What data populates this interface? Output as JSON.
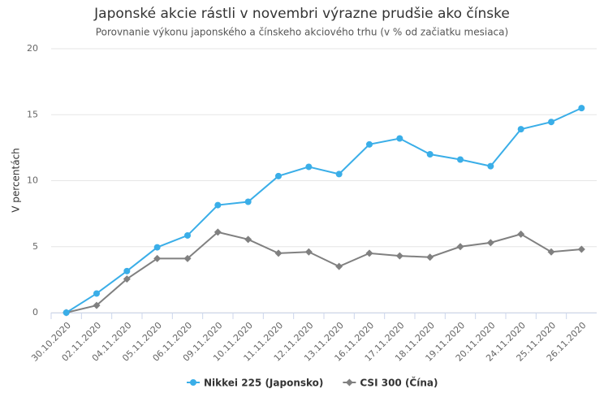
{
  "chart_data": {
    "type": "line",
    "title": "Japonské akcie rástli v novembri výrazne prudšie ako čínske",
    "subtitle": "Porovnanie výkonu japonského a čínskeho akciového trhu (v % od začiatku mesiaca)",
    "y_axis_label": "V percentách",
    "categories": [
      "30.10.2020",
      "02.11.2020",
      "04.11.2020",
      "05.11.2020",
      "06.11.2020",
      "09.11.2020",
      "10.11.2020",
      "11.11.2020",
      "12.11.2020",
      "13.11.2020",
      "16.11.2020",
      "17.11.2020",
      "18.11.2020",
      "19.11.2020",
      "20.11.2020",
      "24.11.2020",
      "25.11.2020",
      "26.11.2020"
    ],
    "series": [
      {
        "name": "Nikkei 225 (Japonsko)",
        "color": "#3aaee8",
        "marker": "circle",
        "values": [
          0,
          1.45,
          3.15,
          4.95,
          5.85,
          8.15,
          8.4,
          10.35,
          11.05,
          10.5,
          12.75,
          13.2,
          12.0,
          11.6,
          11.1,
          13.9,
          14.45,
          15.5
        ]
      },
      {
        "name": "CSI 300 (Čína)",
        "color": "#808080",
        "marker": "diamond",
        "values": [
          0,
          0.55,
          2.55,
          4.1,
          4.1,
          6.1,
          5.55,
          4.5,
          4.6,
          3.5,
          4.5,
          4.3,
          4.2,
          5.0,
          5.3,
          5.95,
          4.6,
          4.8
        ]
      }
    ],
    "ylim": [
      0,
      20
    ],
    "yticks": [
      0,
      5,
      10,
      15,
      20
    ],
    "grid": true
  }
}
